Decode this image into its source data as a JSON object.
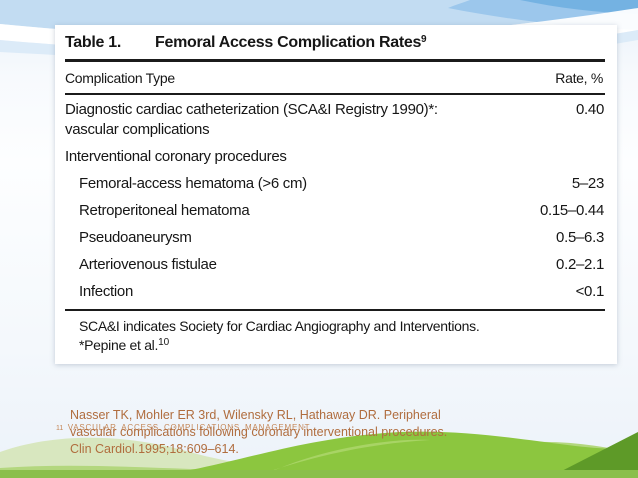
{
  "table": {
    "label": "Table 1.",
    "title": "Femoral Access Complication Rates",
    "title_superscript": "9",
    "col_type": "Complication Type",
    "col_rate": "Rate, %",
    "rows": [
      {
        "name": "Diagnostic cardiac catheterization (SCA&I Registry 1990)*:",
        "name_line2": "vascular complications",
        "rate": "0.40",
        "indent": false
      },
      {
        "name": "Interventional coronary procedures",
        "rate": "",
        "indent": false
      },
      {
        "name": "Femoral-access hematoma (>6 cm)",
        "rate": "5–23",
        "indent": true
      },
      {
        "name": "Retroperitoneal hematoma",
        "rate": "0.15–0.44",
        "indent": true
      },
      {
        "name": "Pseudoaneurysm",
        "rate": "0.5–6.3",
        "indent": true
      },
      {
        "name": "Arteriovenous fistulae",
        "rate": "0.2–2.1",
        "indent": true
      },
      {
        "name": "Infection",
        "rate": "<0.1",
        "indent": true
      }
    ],
    "footnote_line1": "SCA&I indicates Society for Cardiac Angiography and Interventions.",
    "footnote_line2": "*Pepine et al.",
    "footnote_line2_superscript": "10"
  },
  "citation": {
    "line1": "Nasser TK, Mohler ER 3rd, Wilensky RL, Hathaway DR. Peripheral",
    "line2": "vascular complications following coronary interventional procedures.",
    "line3": "Clin Cardiol.1995;18:609–614."
  },
  "footer": {
    "slide_number": "11",
    "overlay_caps_text": "VASCULAR ACCESS COMPLICATIONS MANAGEMENT"
  },
  "colors": {
    "citation_text": "#b06d3e",
    "table_text": "#161616",
    "accent_blue": "#74b2e2",
    "accent_green": "#8cc63f"
  }
}
